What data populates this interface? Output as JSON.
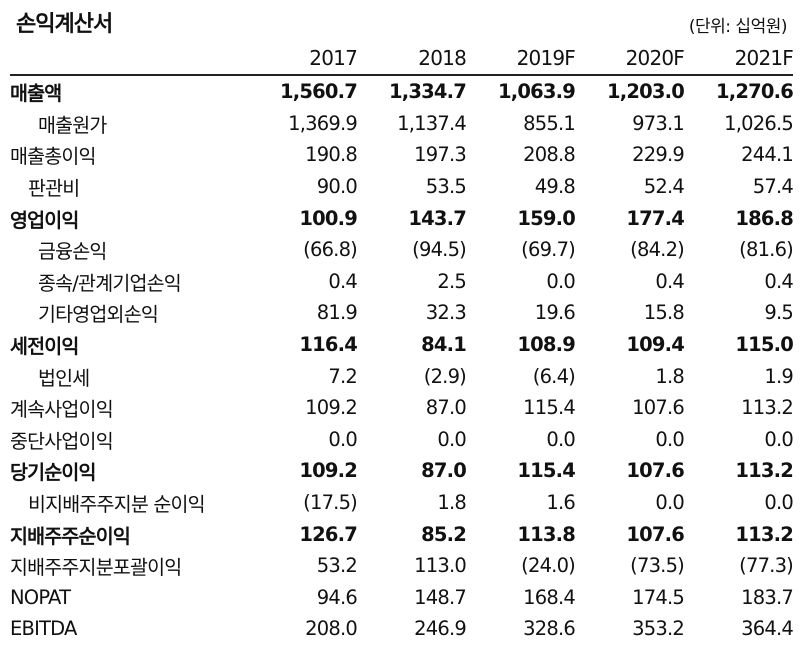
{
  "title": "손익계산서",
  "unit": "(단위: 십억원)",
  "columns": [
    "2017",
    "2018",
    "2019F",
    "2020F",
    "2021F"
  ],
  "rows": [
    {
      "label": "매출액",
      "bold": true,
      "indent": "",
      "values": [
        "1,560.7",
        "1,334.7",
        "1,063.9",
        "1,203.0",
        "1,270.6"
      ]
    },
    {
      "label": "매출원가",
      "bold": false,
      "indent": "indent",
      "values": [
        "1,369.9",
        "1,137.4",
        "855.1",
        "973.1",
        "1,026.5"
      ]
    },
    {
      "label": "매출총이익",
      "bold": false,
      "indent": "",
      "values": [
        "190.8",
        "197.3",
        "208.8",
        "229.9",
        "244.1"
      ]
    },
    {
      "label": "판관비",
      "bold": false,
      "indent": "indent-s",
      "values": [
        "90.0",
        "53.5",
        "49.8",
        "52.4",
        "57.4"
      ]
    },
    {
      "label": "영업이익",
      "bold": true,
      "indent": "",
      "values": [
        "100.9",
        "143.7",
        "159.0",
        "177.4",
        "186.8"
      ]
    },
    {
      "label": "금융손익",
      "bold": false,
      "indent": "indent",
      "values": [
        "(66.8)",
        "(94.5)",
        "(69.7)",
        "(84.2)",
        "(81.6)"
      ]
    },
    {
      "label": "종속/관계기업손익",
      "bold": false,
      "indent": "indent",
      "values": [
        "0.4",
        "2.5",
        "0.0",
        "0.4",
        "0.4"
      ]
    },
    {
      "label": "기타영업외손익",
      "bold": false,
      "indent": "indent",
      "values": [
        "81.9",
        "32.3",
        "19.6",
        "15.8",
        "9.5"
      ]
    },
    {
      "label": "세전이익",
      "bold": true,
      "indent": "",
      "values": [
        "116.4",
        "84.1",
        "108.9",
        "109.4",
        "115.0"
      ]
    },
    {
      "label": "법인세",
      "bold": false,
      "indent": "indent",
      "values": [
        "7.2",
        "(2.9)",
        "(6.4)",
        "1.8",
        "1.9"
      ]
    },
    {
      "label": "계속사업이익",
      "bold": false,
      "indent": "",
      "values": [
        "109.2",
        "87.0",
        "115.4",
        "107.6",
        "113.2"
      ]
    },
    {
      "label": "중단사업이익",
      "bold": false,
      "indent": "",
      "values": [
        "0.0",
        "0.0",
        "0.0",
        "0.0",
        "0.0"
      ]
    },
    {
      "label": "당기순이익",
      "bold": true,
      "indent": "",
      "values": [
        "109.2",
        "87.0",
        "115.4",
        "107.6",
        "113.2"
      ]
    },
    {
      "label": "비지배주주지분 순이익",
      "bold": false,
      "indent": "indent-s",
      "values": [
        "(17.5)",
        "1.8",
        "1.6",
        "0.0",
        "0.0"
      ]
    },
    {
      "label": "지배주주순이익",
      "bold": true,
      "indent": "",
      "values": [
        "126.7",
        "85.2",
        "113.8",
        "107.6",
        "113.2"
      ]
    },
    {
      "label": "지배주주지분포괄이익",
      "bold": false,
      "indent": "",
      "values": [
        "53.2",
        "113.0",
        "(24.0)",
        "(73.5)",
        "(77.3)"
      ]
    },
    {
      "label": "NOPAT",
      "bold": false,
      "indent": "",
      "values": [
        "94.6",
        "148.7",
        "168.4",
        "174.5",
        "183.7"
      ]
    },
    {
      "label": "EBITDA",
      "bold": false,
      "indent": "",
      "values": [
        "208.0",
        "246.9",
        "328.6",
        "353.2",
        "364.4"
      ]
    }
  ]
}
